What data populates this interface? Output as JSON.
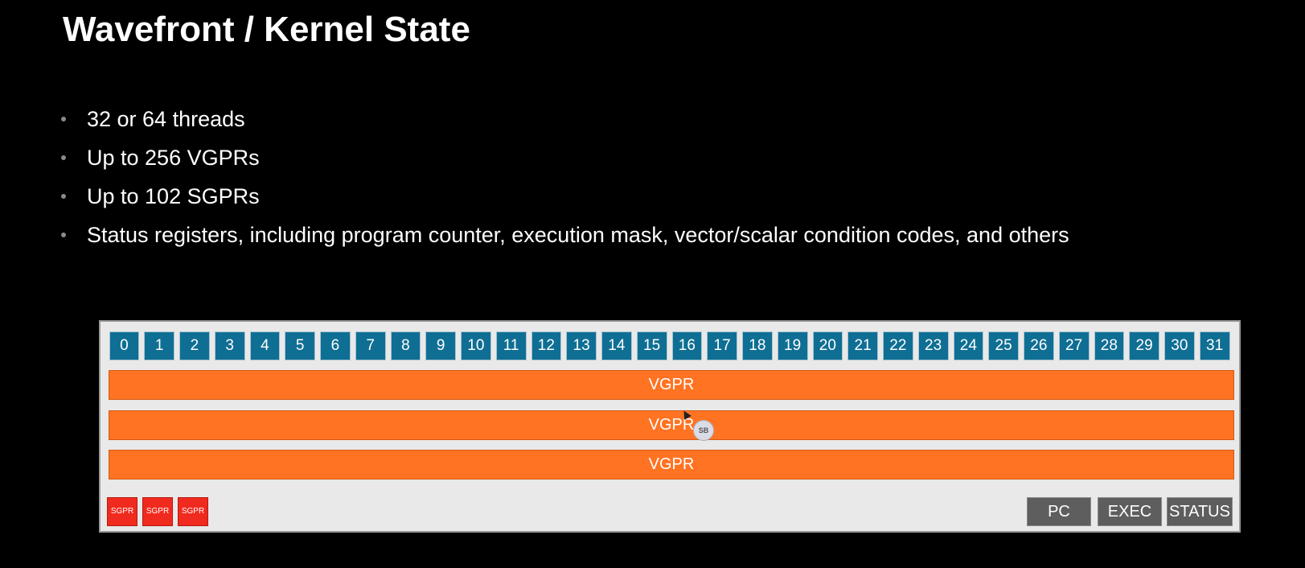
{
  "slide": {
    "title": "Wavefront / Kernel State",
    "bullets": [
      "32 or 64 threads",
      "Up to 256 VGPRs",
      "Up to 102 SGPRs",
      "Status registers, including program counter, execution mask, vector/scalar condition codes, and others"
    ]
  },
  "diagram": {
    "threads": [
      "0",
      "1",
      "2",
      "3",
      "4",
      "5",
      "6",
      "7",
      "8",
      "9",
      "10",
      "11",
      "12",
      "13",
      "14",
      "15",
      "16",
      "17",
      "18",
      "19",
      "20",
      "21",
      "22",
      "23",
      "24",
      "25",
      "26",
      "27",
      "28",
      "29",
      "30",
      "31"
    ],
    "vgpr_rows": [
      "VGPR",
      "VGPR",
      "VGPR"
    ],
    "sgpr_cells": [
      "SGPR",
      "SGPR",
      "SGPR"
    ],
    "status_registers": [
      "PC",
      "EXEC",
      "STATUS"
    ],
    "colors": {
      "thread": "#0f6e93",
      "vgpr": "#ff7322",
      "sgpr": "#f02a1e",
      "status": "#5e5e5e",
      "panel": "#e9e9e9"
    }
  },
  "cursor": {
    "badge_label": "SB"
  }
}
